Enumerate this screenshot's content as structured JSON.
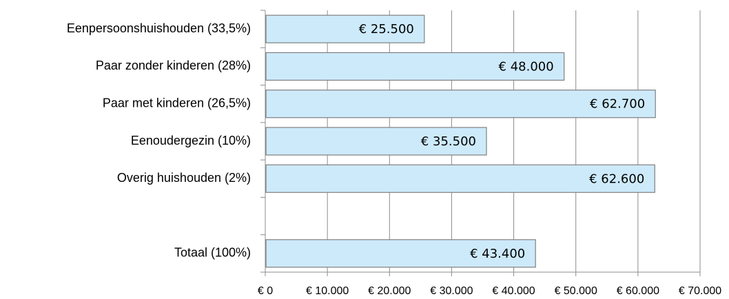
{
  "chart_data": {
    "type": "bar",
    "orientation": "horizontal",
    "categories": [
      "Eenpersoonshuishouden (33,5%)",
      "Paar zonder kinderen (28%)",
      "Paar met kinderen (26,5%)",
      "Eenoudergezin (10%)",
      "Overig huishouden (2%)",
      null,
      "Totaal (100%)"
    ],
    "values": [
      25500,
      48000,
      62700,
      35500,
      62600,
      null,
      43400
    ],
    "value_labels": [
      "€ 25.500",
      "€ 48.000",
      "€ 62.700",
      "€ 35.500",
      "€ 62.600",
      null,
      "€ 43.400"
    ],
    "color": "#cdeafb",
    "xlim": [
      0,
      70000
    ],
    "xticks": [
      {
        "value": 0,
        "label": "€ 0"
      },
      {
        "value": 10000,
        "label": "€ 10.000"
      },
      {
        "value": 20000,
        "label": "€ 20.000"
      },
      {
        "value": 30000,
        "label": "€ 30.000"
      },
      {
        "value": 40000,
        "label": "€ 40.000"
      },
      {
        "value": 50000,
        "label": "€ 50.000"
      },
      {
        "value": 60000,
        "label": "€ 60.000"
      },
      {
        "value": 70000,
        "label": "€ 70.000"
      }
    ],
    "grid": true
  }
}
